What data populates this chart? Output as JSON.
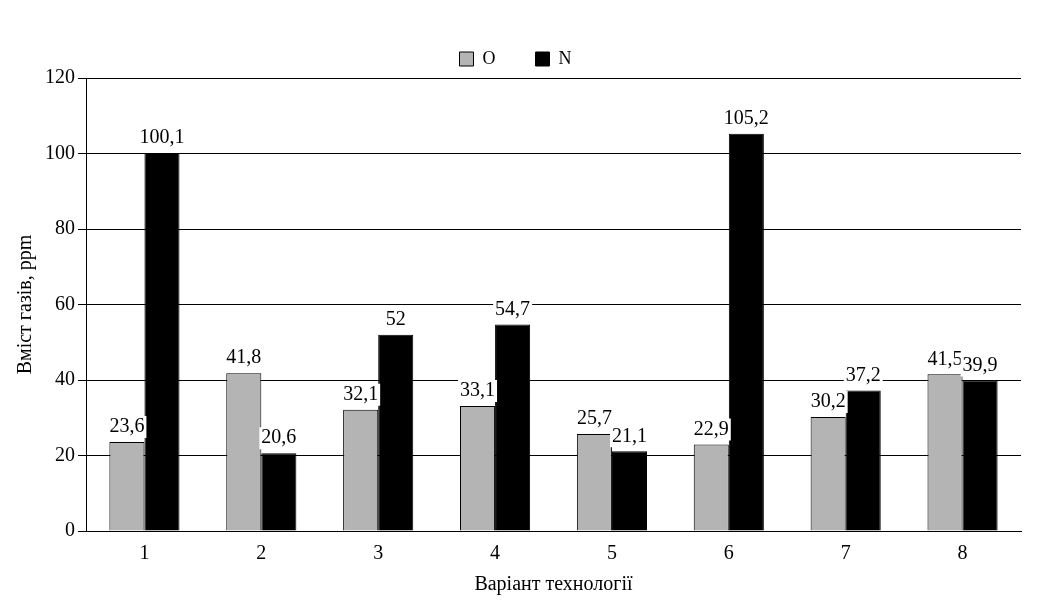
{
  "chart_data": {
    "type": "bar",
    "xlabel": "Варіант технології",
    "ylabel": "Вміст газів, ppm",
    "categories": [
      "1",
      "2",
      "3",
      "4",
      "5",
      "6",
      "7",
      "8"
    ],
    "series": [
      {
        "name": "O",
        "color": "#b4b4b4",
        "values": [
          23.6,
          41.8,
          32.1,
          33.1,
          25.7,
          22.9,
          30.2,
          41.5
        ],
        "value_labels": [
          "23,6",
          "41,8",
          "32,1",
          "33,1",
          "25,7",
          "22,9",
          "30,2",
          "41,5"
        ]
      },
      {
        "name": "N",
        "color": "#000000",
        "values": [
          100.1,
          20.6,
          52,
          54.7,
          21.1,
          105.2,
          37.2,
          39.9
        ],
        "value_labels": [
          "100,1",
          "20,6",
          "52",
          "54,7",
          "21,1",
          "105,2",
          "37,2",
          "39,9"
        ]
      }
    ],
    "ylim": [
      0,
      120
    ],
    "yticks": [
      0,
      20,
      40,
      60,
      80,
      100,
      120
    ],
    "grid": "y",
    "legend": "top"
  }
}
